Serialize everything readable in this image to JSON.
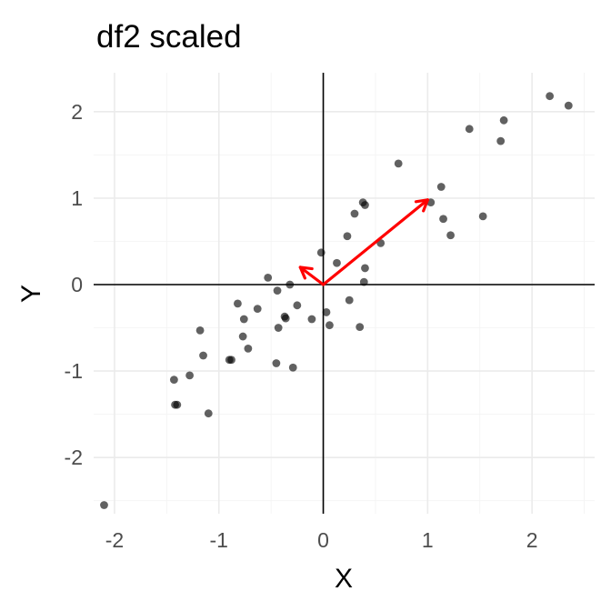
{
  "chart_data": {
    "type": "scatter",
    "title": "df2 scaled",
    "xlabel": "X",
    "ylabel": "Y",
    "xlim": [
      -2.2,
      2.6
    ],
    "ylim": [
      -2.65,
      2.45
    ],
    "x_ticks": [
      -2,
      -1,
      0,
      1,
      2
    ],
    "y_ticks": [
      -2,
      -1,
      0,
      1,
      2
    ],
    "x_tick_labels": [
      "-2",
      "-1",
      "0",
      "1",
      "2"
    ],
    "y_tick_labels": [
      "-2",
      "-1",
      "0",
      "1",
      "2"
    ],
    "grid": true,
    "reference_lines": {
      "x": 0,
      "y": 0
    },
    "colors": {
      "points": "#000000",
      "arrows": "#ff0000"
    },
    "points": [
      [
        -2.1,
        -2.55
      ],
      [
        2.17,
        2.18
      ],
      [
        2.35,
        2.07
      ],
      [
        1.73,
        1.9
      ],
      [
        1.4,
        1.8
      ],
      [
        1.7,
        1.66
      ],
      [
        0.72,
        1.4
      ],
      [
        1.13,
        1.13
      ],
      [
        1.03,
        0.95
      ],
      [
        0.38,
        0.95
      ],
      [
        0.4,
        0.92
      ],
      [
        0.3,
        0.82
      ],
      [
        1.53,
        0.79
      ],
      [
        1.15,
        0.76
      ],
      [
        1.22,
        0.57
      ],
      [
        0.23,
        0.56
      ],
      [
        0.55,
        0.48
      ],
      [
        -0.02,
        0.37
      ],
      [
        0.13,
        0.25
      ],
      [
        0.4,
        0.19
      ],
      [
        -0.53,
        0.08
      ],
      [
        0.39,
        0.03
      ],
      [
        -0.32,
        0.0
      ],
      [
        -0.44,
        -0.07
      ],
      [
        0.25,
        -0.18
      ],
      [
        -0.82,
        -0.22
      ],
      [
        -0.25,
        -0.24
      ],
      [
        -0.63,
        -0.28
      ],
      [
        0.03,
        -0.32
      ],
      [
        -0.37,
        -0.37
      ],
      [
        -0.36,
        -0.39
      ],
      [
        -0.76,
        -0.4
      ],
      [
        -0.11,
        -0.4
      ],
      [
        0.06,
        -0.47
      ],
      [
        0.35,
        -0.49
      ],
      [
        -0.43,
        -0.5
      ],
      [
        -1.18,
        -0.53
      ],
      [
        -0.77,
        -0.6
      ],
      [
        -0.72,
        -0.74
      ],
      [
        -1.15,
        -0.82
      ],
      [
        -0.9,
        -0.87
      ],
      [
        -0.88,
        -0.87
      ],
      [
        -0.45,
        -0.91
      ],
      [
        -0.29,
        -0.96
      ],
      [
        -1.28,
        -1.05
      ],
      [
        -1.43,
        -1.1
      ],
      [
        -1.42,
        -1.39
      ],
      [
        -1.4,
        -1.39
      ],
      [
        -1.1,
        -1.49
      ]
    ],
    "arrows": [
      {
        "from": [
          0,
          0
        ],
        "to": [
          1.0,
          0.98
        ]
      },
      {
        "from": [
          0,
          0
        ],
        "to": [
          -0.22,
          0.2
        ]
      }
    ]
  }
}
